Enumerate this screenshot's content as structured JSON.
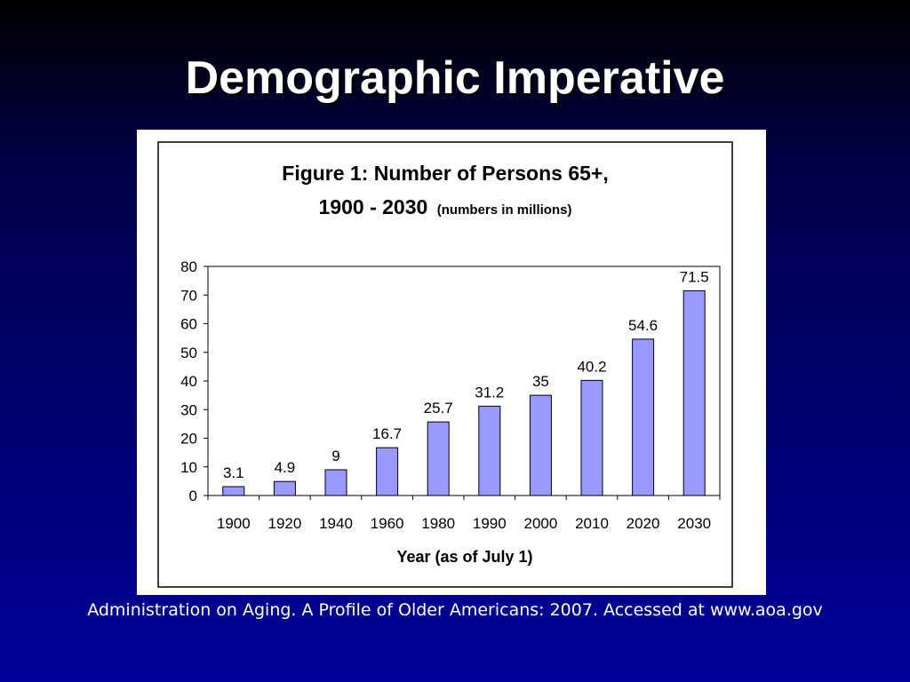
{
  "slide": {
    "title": "Demographic Imperative",
    "citation": "Administration on Aging. A Profile of Older Americans: 2007. Accessed at www.aoa.gov"
  },
  "colors": {
    "background_top": "#000000",
    "background_bottom": "#00009a",
    "bar_fill": "#9999ff",
    "bar_stroke": "#000000"
  },
  "chart_data": {
    "type": "bar",
    "title_line1": "Figure 1: Number of Persons 65+,",
    "title_line2": "1900 - 2030",
    "title_note": "(numbers in millions)",
    "xlabel": "Year (as of July 1)",
    "ylabel": "",
    "ylim": [
      0,
      80
    ],
    "yticks": [
      "0",
      "10",
      "20",
      "30",
      "40",
      "50",
      "60",
      "70",
      "80"
    ],
    "categories": [
      "1900",
      "1920",
      "1940",
      "1960",
      "1980",
      "1990",
      "2000",
      "2010",
      "2020",
      "2030"
    ],
    "values": [
      3.1,
      4.9,
      9,
      16.7,
      25.7,
      31.2,
      35,
      40.2,
      54.6,
      71.5
    ],
    "data_labels": [
      "3.1",
      "4.9",
      "9",
      "16.7",
      "25.7",
      "31.2",
      "35",
      "40.2",
      "54.6",
      "71.5"
    ],
    "grid": false,
    "legend": "none"
  }
}
